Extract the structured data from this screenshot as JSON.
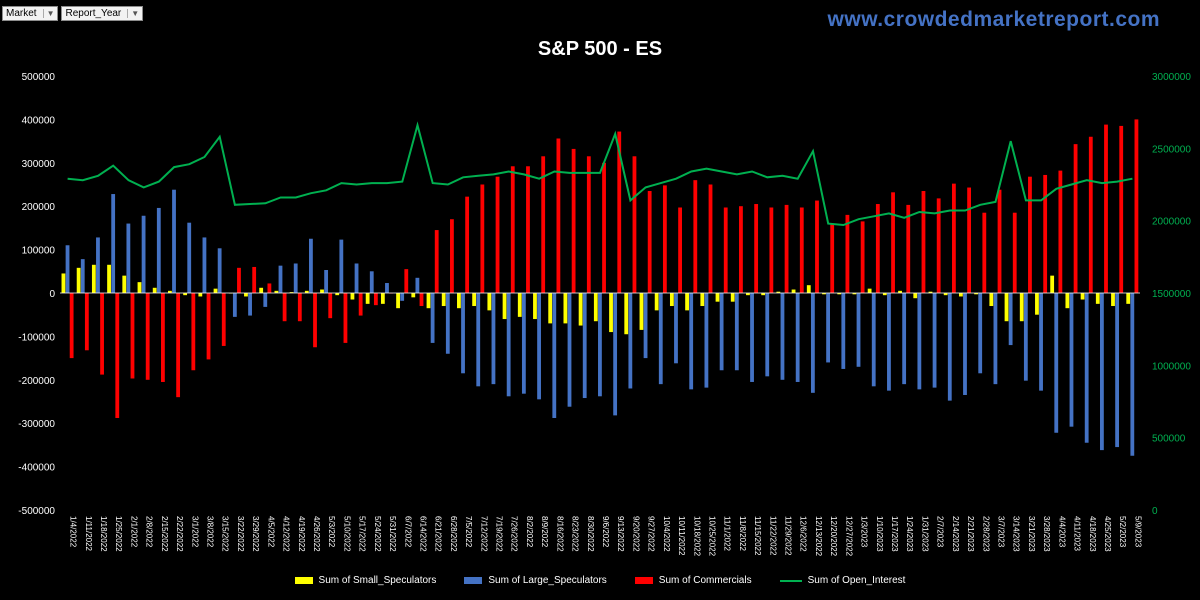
{
  "filters": [
    {
      "label": "Market"
    },
    {
      "label": "Report_Year"
    }
  ],
  "website": "www.crowdedmarketreport.com",
  "chart_data": {
    "type": "bar",
    "title": "S&P 500 - ES",
    "y_left": {
      "min": -500000,
      "max": 500000,
      "step": 100000,
      "ticks": [
        "500000",
        "400000",
        "300000",
        "200000",
        "100000",
        "0",
        "-100000",
        "-200000",
        "-300000",
        "-400000",
        "-500000"
      ]
    },
    "y_right": {
      "min": 0,
      "max": 3000000,
      "step": 500000,
      "ticks": [
        "3000000",
        "2500000",
        "2000000",
        "1500000",
        "1000000",
        "500000",
        "0"
      ]
    },
    "categories": [
      "1/4/2022",
      "1/11/2022",
      "1/18/2022",
      "1/25/2022",
      "2/1/2022",
      "2/8/2022",
      "2/15/2022",
      "2/22/2022",
      "3/1/2022",
      "3/8/2022",
      "3/15/2022",
      "3/22/2022",
      "3/29/2022",
      "4/5/2022",
      "4/12/2022",
      "4/19/2022",
      "4/26/2022",
      "5/3/2022",
      "5/10/2022",
      "5/17/2022",
      "5/24/2022",
      "5/31/2022",
      "6/7/2022",
      "6/14/2022",
      "6/21/2022",
      "6/28/2022",
      "7/5/2022",
      "7/12/2022",
      "7/19/2022",
      "7/26/2022",
      "8/2/2022",
      "8/9/2022",
      "8/16/2022",
      "8/23/2022",
      "8/30/2022",
      "9/6/2022",
      "9/13/2022",
      "9/20/2022",
      "9/27/2022",
      "10/4/2022",
      "10/11/2022",
      "10/18/2022",
      "10/25/2022",
      "11/1/2022",
      "11/8/2022",
      "11/15/2022",
      "11/22/2022",
      "11/29/2022",
      "12/6/2022",
      "12/13/2022",
      "12/20/2022",
      "12/27/2022",
      "1/3/2023",
      "1/10/2023",
      "1/17/2023",
      "1/24/2023",
      "1/31/2023",
      "2/7/2023",
      "2/14/2023",
      "2/21/2023",
      "2/28/2023",
      "3/7/2023",
      "3/14/2023",
      "3/21/2023",
      "3/28/2023",
      "4/4/2023",
      "4/11/2023",
      "4/18/2023",
      "4/25/2023",
      "5/2/2023",
      "5/9/2023"
    ],
    "series": [
      {
        "name": "Sum of Small_Speculators",
        "axis": "left",
        "color": "#ffff00",
        "values": [
          45000,
          58000,
          65000,
          65000,
          40000,
          25000,
          12000,
          5000,
          -5000,
          -8000,
          10000,
          0,
          -8000,
          12000,
          5000,
          2000,
          5000,
          8000,
          -5000,
          -15000,
          -25000,
          -25000,
          -35000,
          -10000,
          -35000,
          -30000,
          -35000,
          -30000,
          -40000,
          -60000,
          -55000,
          -60000,
          -70000,
          -70000,
          -75000,
          -65000,
          -90000,
          -95000,
          -85000,
          -40000,
          -30000,
          -40000,
          -30000,
          -20000,
          -20000,
          -5000,
          -5000,
          3000,
          8000,
          18000,
          -3000,
          -3000,
          -3000,
          10000,
          -5000,
          5000,
          -12000,
          3000,
          -5000,
          -8000,
          -3000,
          -30000,
          -65000,
          -65000,
          -50000,
          40000,
          -35000,
          -15000,
          -25000,
          -30000,
          -25000
        ]
      },
      {
        "name": "Sum of Large_Speculators",
        "axis": "left",
        "color": "#4472c4",
        "values": [
          110000,
          78000,
          128000,
          228000,
          160000,
          178000,
          196000,
          238000,
          162000,
          128000,
          103000,
          -55000,
          -52000,
          -32000,
          63000,
          68000,
          125000,
          53000,
          123000,
          68000,
          50000,
          23000,
          -18000,
          35000,
          -115000,
          -140000,
          -185000,
          -215000,
          -210000,
          -238000,
          -232000,
          -245000,
          -288000,
          -262000,
          -242000,
          -238000,
          -282000,
          -220000,
          -150000,
          -210000,
          -162000,
          -222000,
          -218000,
          -178000,
          -178000,
          -205000,
          -192000,
          -200000,
          -205000,
          -230000,
          -160000,
          -175000,
          -170000,
          -215000,
          -225000,
          -210000,
          -222000,
          -218000,
          -248000,
          -235000,
          -185000,
          -210000,
          -120000,
          -202000,
          -225000,
          -322000,
          -308000,
          -345000,
          -362000,
          -355000,
          -375000
        ]
      },
      {
        "name": "Sum of Commercials",
        "axis": "left",
        "color": "#ff0000",
        "values": [
          -150000,
          -132000,
          -188000,
          -288000,
          -197000,
          -200000,
          -205000,
          -240000,
          -178000,
          -153000,
          -122000,
          58000,
          60000,
          22000,
          -65000,
          -65000,
          -125000,
          -58000,
          -115000,
          -52000,
          -28000,
          0,
          55000,
          -30000,
          145000,
          170000,
          222000,
          250000,
          268000,
          292000,
          292000,
          315000,
          356000,
          332000,
          315000,
          300000,
          372000,
          315000,
          235000,
          248000,
          197000,
          260000,
          250000,
          197000,
          200000,
          205000,
          197000,
          203000,
          197000,
          213000,
          160000,
          180000,
          165000,
          205000,
          232000,
          203000,
          235000,
          218000,
          252000,
          243000,
          185000,
          238000,
          185000,
          268000,
          272000,
          282000,
          343000,
          360000,
          388000,
          385000,
          400000
        ]
      },
      {
        "name": "Sum of Open_Interest",
        "axis": "right",
        "color": "#00b050",
        "type": "line",
        "values": [
          2290000,
          2280000,
          2310000,
          2380000,
          2280000,
          2230000,
          2270000,
          2370000,
          2390000,
          2440000,
          2580000,
          2110000,
          2115000,
          2120000,
          2160000,
          2160000,
          2190000,
          2210000,
          2260000,
          2250000,
          2260000,
          2260000,
          2270000,
          2660000,
          2260000,
          2250000,
          2300000,
          2310000,
          2320000,
          2340000,
          2320000,
          2290000,
          2340000,
          2330000,
          2330000,
          2330000,
          2600000,
          2140000,
          2230000,
          2260000,
          2290000,
          2340000,
          2360000,
          2340000,
          2320000,
          2340000,
          2300000,
          2310000,
          2290000,
          2480000,
          1980000,
          1970000,
          2010000,
          2030000,
          2050000,
          2020000,
          2060000,
          2050000,
          2070000,
          2070000,
          2110000,
          2130000,
          2550000,
          2140000,
          2140000,
          2220000,
          2250000,
          2280000,
          2260000,
          2270000,
          2290000
        ]
      }
    ],
    "legend": "bottom",
    "grid": false
  }
}
